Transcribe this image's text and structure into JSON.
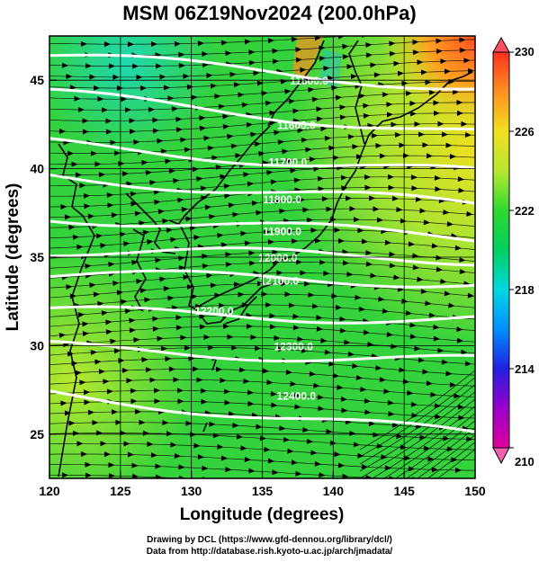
{
  "title": "MSM 06Z19Nov2024 (200.0hPa)",
  "credits": {
    "line1": "Drawing by DCL (https://www.gfd-dennou.org/library/dcl/)",
    "line2": "Data from http://database.rish.kyoto-u.ac.jp/arch/jmadata/"
  },
  "chart_data": {
    "type": "heatmap",
    "title": "MSM 06Z19Nov2024 (200.0hPa)",
    "xlabel": "Longitude (degrees)",
    "ylabel": "Latitude  (degrees)",
    "xlim": [
      120,
      150
    ],
    "ylim": [
      22.5,
      47.5
    ],
    "x_ticks": [
      120,
      125,
      130,
      135,
      140,
      145,
      150
    ],
    "y_ticks": [
      25,
      30,
      35,
      40,
      45
    ],
    "grid": true,
    "colorbar": {
      "label_values": [
        210,
        214,
        218,
        222,
        226,
        230
      ],
      "range": [
        210,
        230
      ],
      "colors": [
        "#e0009a",
        "#9a00cc",
        "#2020e0",
        "#0090ff",
        "#00d8e0",
        "#00d060",
        "#30d830",
        "#b8e830",
        "#f0e020",
        "#ff9020",
        "#ff3020"
      ]
    },
    "contours": [
      {
        "label": "11500.0",
        "lat_west": 46.4,
        "lat_east": 44.6
      },
      {
        "label": "11600.0",
        "lat_west": 44.2,
        "lat_east": 42.0
      },
      {
        "label": "11700.0",
        "lat_west": 41.4,
        "lat_east": 39.7
      },
      {
        "label": "11800.0",
        "lat_west": 39.6,
        "lat_east": 37.9
      },
      {
        "label": "11900.0",
        "lat_west": 37.3,
        "lat_east": 36.1
      },
      {
        "label": "12000.0",
        "lat_west": 35.4,
        "lat_east": 34.9
      },
      {
        "label": "12100.0",
        "lat_west": 34.0,
        "lat_east": 33.6
      },
      {
        "label": "12200.0",
        "lat_west": 31.9,
        "lat_east": 31.5
      },
      {
        "label": "12300.0",
        "lat_west": 29.9,
        "lat_east": 29.1
      },
      {
        "label": "12400.0",
        "lat_west": 27.3,
        "lat_east": 24.9
      }
    ],
    "contour_label_positions": [
      {
        "label": "11500.0",
        "lon": 138.3,
        "lat": 45.0
      },
      {
        "label": "11600.0",
        "lon": 137.4,
        "lat": 42.5
      },
      {
        "label": "11700.0",
        "lon": 136.8,
        "lat": 40.4
      },
      {
        "label": "11800.0",
        "lon": 136.4,
        "lat": 38.3
      },
      {
        "label": "11900.0",
        "lon": 136.4,
        "lat": 36.5
      },
      {
        "label": "12000.0",
        "lon": 136.1,
        "lat": 35.0
      },
      {
        "label": "12100.0",
        "lon": 136.2,
        "lat": 33.7
      },
      {
        "label": "12200.0",
        "lon": 131.6,
        "lat": 32.0
      },
      {
        "label": "12300.0",
        "lon": 137.2,
        "lat": 30.0
      },
      {
        "label": "12400.0",
        "lon": 137.4,
        "lat": 27.2
      }
    ],
    "wind_field": "westerly streamlines (arrows pointing east)"
  }
}
